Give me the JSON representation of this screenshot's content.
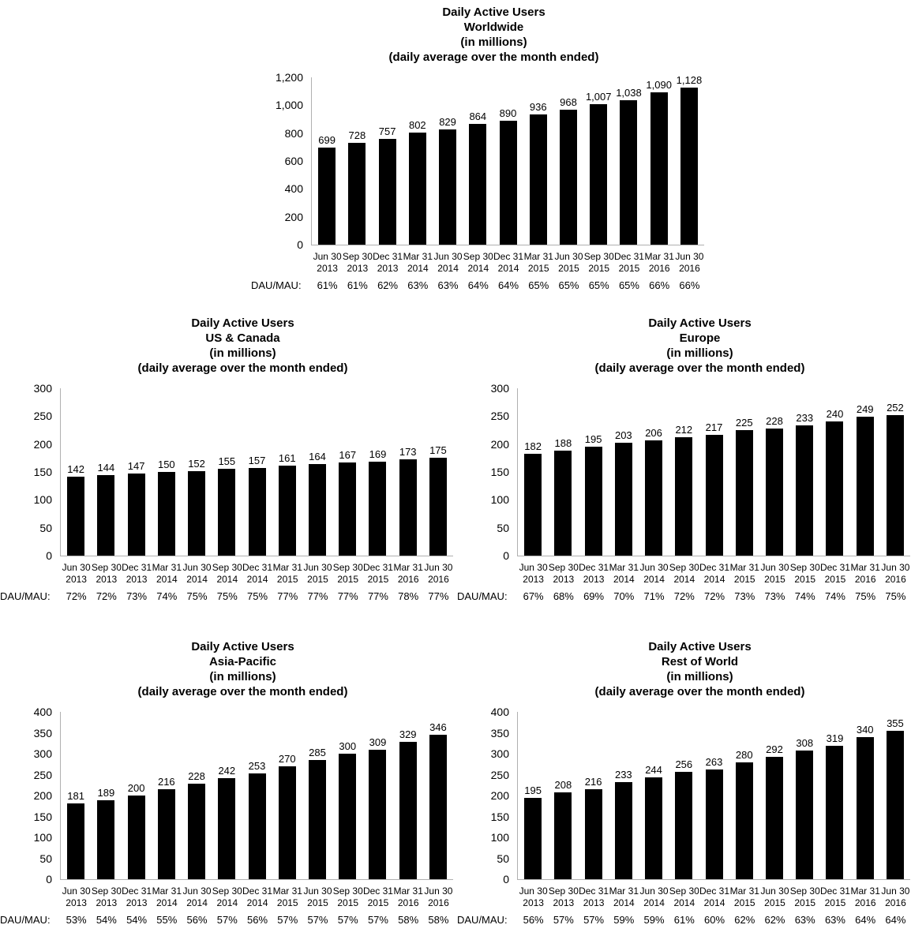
{
  "page": {
    "dau_mau_label": "DAU/MAU:"
  },
  "colors": {
    "bar": "#000000",
    "axis_line": "#b0b0b0",
    "text": "#000000",
    "background": "#ffffff"
  },
  "chart_data": [
    {
      "type": "bar",
      "title_lines": [
        "Daily Active Users",
        "Worldwide",
        "(in millions)",
        "(daily average over the month ended)"
      ],
      "grid": false,
      "legend": false,
      "ylim": [
        0,
        1200
      ],
      "ytick_values": [
        0,
        200,
        400,
        600,
        800,
        1000,
        1200
      ],
      "ytick_labels": [
        "0",
        "200",
        "400",
        "600",
        "800",
        "1,000",
        "1,200"
      ],
      "categories": [
        {
          "line1": "Jun 30",
          "line2": "2013"
        },
        {
          "line1": "Sep 30",
          "line2": "2013"
        },
        {
          "line1": "Dec 31",
          "line2": "2013"
        },
        {
          "line1": "Mar 31",
          "line2": "2014"
        },
        {
          "line1": "Jun 30",
          "line2": "2014"
        },
        {
          "line1": "Sep 30",
          "line2": "2014"
        },
        {
          "line1": "Dec 31",
          "line2": "2014"
        },
        {
          "line1": "Mar 31",
          "line2": "2015"
        },
        {
          "line1": "Jun 30",
          "line2": "2015"
        },
        {
          "line1": "Sep 30",
          "line2": "2015"
        },
        {
          "line1": "Dec 31",
          "line2": "2015"
        },
        {
          "line1": "Mar 31",
          "line2": "2016"
        },
        {
          "line1": "Jun 30",
          "line2": "2016"
        }
      ],
      "values": [
        699,
        728,
        757,
        802,
        829,
        864,
        890,
        936,
        968,
        1007,
        1038,
        1090,
        1128
      ],
      "value_labels": [
        "699",
        "728",
        "757",
        "802",
        "829",
        "864",
        "890",
        "936",
        "968",
        "1,007",
        "1,038",
        "1,090",
        "1,128"
      ],
      "dau_mau": [
        "61%",
        "61%",
        "62%",
        "63%",
        "63%",
        "64%",
        "64%",
        "65%",
        "65%",
        "65%",
        "65%",
        "66%",
        "66%"
      ]
    },
    {
      "type": "bar",
      "title_lines": [
        "Daily Active Users",
        "US & Canada",
        "(in millions)",
        "(daily average over the month ended)"
      ],
      "grid": false,
      "legend": false,
      "ylim": [
        0,
        300
      ],
      "ytick_values": [
        0,
        50,
        100,
        150,
        200,
        250,
        300
      ],
      "ytick_labels": [
        "0",
        "50",
        "100",
        "150",
        "200",
        "250",
        "300"
      ],
      "categories": [
        {
          "line1": "Jun 30",
          "line2": "2013"
        },
        {
          "line1": "Sep 30",
          "line2": "2013"
        },
        {
          "line1": "Dec 31",
          "line2": "2013"
        },
        {
          "line1": "Mar 31",
          "line2": "2014"
        },
        {
          "line1": "Jun 30",
          "line2": "2014"
        },
        {
          "line1": "Sep 30",
          "line2": "2014"
        },
        {
          "line1": "Dec 31",
          "line2": "2014"
        },
        {
          "line1": "Mar 31",
          "line2": "2015"
        },
        {
          "line1": "Jun 30",
          "line2": "2015"
        },
        {
          "line1": "Sep 30",
          "line2": "2015"
        },
        {
          "line1": "Dec 31",
          "line2": "2015"
        },
        {
          "line1": "Mar 31",
          "line2": "2016"
        },
        {
          "line1": "Jun 30",
          "line2": "2016"
        }
      ],
      "values": [
        142,
        144,
        147,
        150,
        152,
        155,
        157,
        161,
        164,
        167,
        169,
        173,
        175
      ],
      "value_labels": [
        "142",
        "144",
        "147",
        "150",
        "152",
        "155",
        "157",
        "161",
        "164",
        "167",
        "169",
        "173",
        "175"
      ],
      "dau_mau": [
        "72%",
        "72%",
        "73%",
        "74%",
        "75%",
        "75%",
        "75%",
        "77%",
        "77%",
        "77%",
        "77%",
        "78%",
        "77%"
      ]
    },
    {
      "type": "bar",
      "title_lines": [
        "Daily Active Users",
        "Europe",
        "(in millions)",
        "(daily average over the month ended)"
      ],
      "grid": false,
      "legend": false,
      "ylim": [
        0,
        300
      ],
      "ytick_values": [
        0,
        50,
        100,
        150,
        200,
        250,
        300
      ],
      "ytick_labels": [
        "0",
        "50",
        "100",
        "150",
        "200",
        "250",
        "300"
      ],
      "categories": [
        {
          "line1": "Jun 30",
          "line2": "2013"
        },
        {
          "line1": "Sep 30",
          "line2": "2013"
        },
        {
          "line1": "Dec 31",
          "line2": "2013"
        },
        {
          "line1": "Mar 31",
          "line2": "2014"
        },
        {
          "line1": "Jun 30",
          "line2": "2014"
        },
        {
          "line1": "Sep 30",
          "line2": "2014"
        },
        {
          "line1": "Dec 31",
          "line2": "2014"
        },
        {
          "line1": "Mar 31",
          "line2": "2015"
        },
        {
          "line1": "Jun 30",
          "line2": "2015"
        },
        {
          "line1": "Sep 30",
          "line2": "2015"
        },
        {
          "line1": "Dec 31",
          "line2": "2015"
        },
        {
          "line1": "Mar 31",
          "line2": "2016"
        },
        {
          "line1": "Jun 30",
          "line2": "2016"
        }
      ],
      "values": [
        182,
        188,
        195,
        203,
        206,
        212,
        217,
        225,
        228,
        233,
        240,
        249,
        252
      ],
      "value_labels": [
        "182",
        "188",
        "195",
        "203",
        "206",
        "212",
        "217",
        "225",
        "228",
        "233",
        "240",
        "249",
        "252"
      ],
      "dau_mau": [
        "67%",
        "68%",
        "69%",
        "70%",
        "71%",
        "72%",
        "72%",
        "73%",
        "73%",
        "74%",
        "74%",
        "75%",
        "75%"
      ]
    },
    {
      "type": "bar",
      "title_lines": [
        "Daily Active Users",
        "Asia-Pacific",
        "(in millions)",
        "(daily average over the month ended)"
      ],
      "grid": false,
      "legend": false,
      "ylim": [
        0,
        400
      ],
      "ytick_values": [
        0,
        50,
        100,
        150,
        200,
        250,
        300,
        350,
        400
      ],
      "ytick_labels": [
        "0",
        "50",
        "100",
        "150",
        "200",
        "250",
        "300",
        "350",
        "400"
      ],
      "categories": [
        {
          "line1": "Jun 30",
          "line2": "2013"
        },
        {
          "line1": "Sep 30",
          "line2": "2013"
        },
        {
          "line1": "Dec 31",
          "line2": "2013"
        },
        {
          "line1": "Mar 31",
          "line2": "2014"
        },
        {
          "line1": "Jun 30",
          "line2": "2014"
        },
        {
          "line1": "Sep 30",
          "line2": "2014"
        },
        {
          "line1": "Dec 31",
          "line2": "2014"
        },
        {
          "line1": "Mar 31",
          "line2": "2015"
        },
        {
          "line1": "Jun 30",
          "line2": "2015"
        },
        {
          "line1": "Sep 30",
          "line2": "2015"
        },
        {
          "line1": "Dec 31",
          "line2": "2015"
        },
        {
          "line1": "Mar 31",
          "line2": "2016"
        },
        {
          "line1": "Jun 30",
          "line2": "2016"
        }
      ],
      "values": [
        181,
        189,
        200,
        216,
        228,
        242,
        253,
        270,
        285,
        300,
        309,
        329,
        346
      ],
      "value_labels": [
        "181",
        "189",
        "200",
        "216",
        "228",
        "242",
        "253",
        "270",
        "285",
        "300",
        "309",
        "329",
        "346"
      ],
      "dau_mau": [
        "53%",
        "54%",
        "54%",
        "55%",
        "56%",
        "57%",
        "56%",
        "57%",
        "57%",
        "57%",
        "57%",
        "58%",
        "58%"
      ]
    },
    {
      "type": "bar",
      "title_lines": [
        "Daily Active Users",
        "Rest of World",
        "(in millions)",
        "(daily average over the month ended)"
      ],
      "grid": false,
      "legend": false,
      "ylim": [
        0,
        400
      ],
      "ytick_values": [
        0,
        50,
        100,
        150,
        200,
        250,
        300,
        350,
        400
      ],
      "ytick_labels": [
        "0",
        "50",
        "100",
        "150",
        "200",
        "250",
        "300",
        "350",
        "400"
      ],
      "categories": [
        {
          "line1": "Jun 30",
          "line2": "2013"
        },
        {
          "line1": "Sep 30",
          "line2": "2013"
        },
        {
          "line1": "Dec 31",
          "line2": "2013"
        },
        {
          "line1": "Mar 31",
          "line2": "2014"
        },
        {
          "line1": "Jun 30",
          "line2": "2014"
        },
        {
          "line1": "Sep 30",
          "line2": "2014"
        },
        {
          "line1": "Dec 31",
          "line2": "2014"
        },
        {
          "line1": "Mar 31",
          "line2": "2015"
        },
        {
          "line1": "Jun 30",
          "line2": "2015"
        },
        {
          "line1": "Sep 30",
          "line2": "2015"
        },
        {
          "line1": "Dec 31",
          "line2": "2015"
        },
        {
          "line1": "Mar 31",
          "line2": "2016"
        },
        {
          "line1": "Jun 30",
          "line2": "2016"
        }
      ],
      "values": [
        195,
        208,
        216,
        233,
        244,
        256,
        263,
        280,
        292,
        308,
        319,
        340,
        355
      ],
      "value_labels": [
        "195",
        "208",
        "216",
        "233",
        "244",
        "256",
        "263",
        "280",
        "292",
        "308",
        "319",
        "340",
        "355"
      ],
      "dau_mau": [
        "56%",
        "57%",
        "57%",
        "59%",
        "59%",
        "61%",
        "60%",
        "62%",
        "62%",
        "63%",
        "63%",
        "64%",
        "64%"
      ]
    }
  ]
}
